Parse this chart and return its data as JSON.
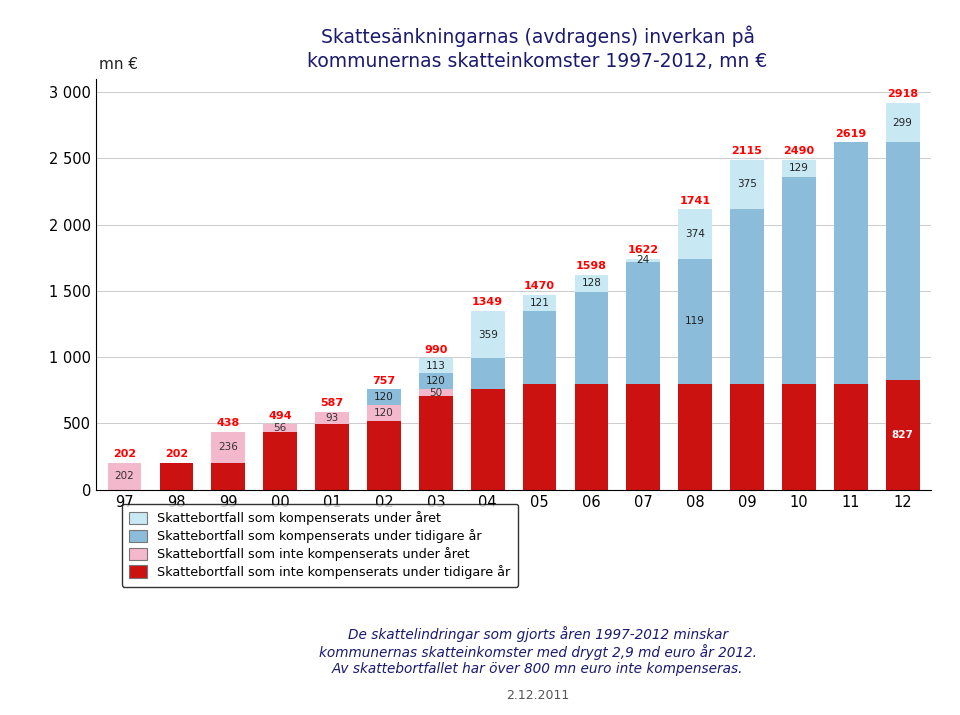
{
  "years": [
    "97",
    "98",
    "99",
    "00",
    "01",
    "02",
    "03",
    "04",
    "05",
    "06",
    "07",
    "08",
    "09",
    "10",
    "11",
    "12"
  ],
  "title_line1": "Skattesänkningarnas (avdragens) inverkan på",
  "title_line2": "kommunernas skatteinkomster 1997-2012, mn €",
  "ylabel_text": "mn €",
  "color_curr_comp": "#c8e8f4",
  "color_prev_comp": "#8bbcda",
  "color_curr_not": "#f4b8cc",
  "color_prev_not": "#cc1111",
  "label_curr_comp": "Skattebortfall som kompenserats under året",
  "label_prev_comp": "Skattebortfall som kompenserats under tidigare år",
  "label_curr_not": "Skattebortfall som inte kompenserats under året",
  "label_prev_not": "Skattebortfall som inte kompenserats under tidigare år",
  "red": [
    0,
    202,
    202,
    438,
    494,
    517,
    707,
    757,
    800,
    800,
    800,
    800,
    800,
    800,
    800,
    827
  ],
  "pink": [
    202,
    0,
    236,
    56,
    93,
    120,
    50,
    0,
    0,
    0,
    0,
    0,
    0,
    0,
    0,
    0
  ],
  "blue_prev": [
    0,
    0,
    0,
    0,
    0,
    120,
    120,
    233,
    549,
    694,
    917,
    941,
    1315,
    1561,
    1819,
    1792
  ],
  "blue_curr": [
    0,
    0,
    0,
    0,
    0,
    0,
    113,
    359,
    121,
    128,
    24,
    374,
    375,
    129,
    0,
    299
  ],
  "total_labels": [
    202,
    202,
    438,
    494,
    587,
    757,
    990,
    1349,
    1470,
    1598,
    1622,
    1741,
    2115,
    2490,
    2619,
    2918
  ],
  "show_blue_curr_lbl": [
    0,
    0,
    0,
    0,
    0,
    0,
    113,
    359,
    121,
    128,
    24,
    374,
    375,
    129,
    0,
    299
  ],
  "show_blue_prev_lbl": [
    0,
    0,
    0,
    0,
    0,
    120,
    120,
    0,
    0,
    0,
    0,
    119,
    0,
    0,
    0,
    0
  ],
  "show_pink_lbl": [
    202,
    0,
    236,
    56,
    93,
    120,
    50,
    0,
    0,
    0,
    0,
    0,
    0,
    0,
    0,
    0
  ],
  "show_red_lbl": [
    0,
    0,
    0,
    0,
    0,
    0,
    0,
    0,
    0,
    0,
    0,
    0,
    0,
    0,
    0,
    827
  ],
  "footer": "De skattelindringar som gjorts åren 1997-2012 minskar\nkommunernas skatteinkomster med drygt 2,9 md euro år 2012.\nAv skattebortfallet har över 800 mn euro inte kompenseras.",
  "date": "2.12.2011",
  "ylim": [
    0,
    3100
  ],
  "yticks": [
    0,
    500,
    1000,
    1500,
    2000,
    2500,
    3000
  ],
  "ytick_labels": [
    "0",
    "500",
    "1 000",
    "1 500",
    "2 000",
    "2 500",
    "3 000"
  ]
}
